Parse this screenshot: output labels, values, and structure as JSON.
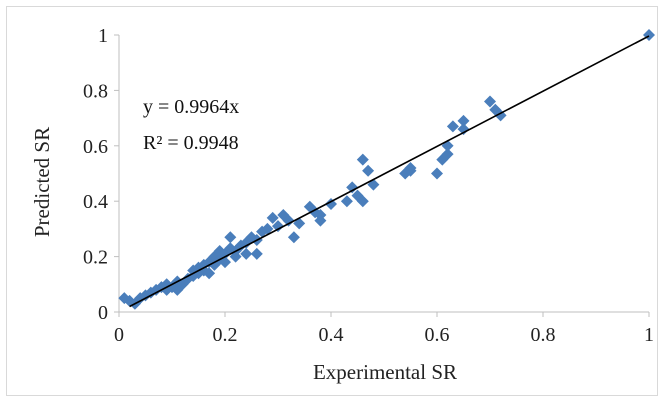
{
  "chart_data": {
    "type": "scatter",
    "title": "",
    "xlabel": "Experimental SR",
    "ylabel": "Predicted SR",
    "xlim": [
      0,
      1
    ],
    "ylim": [
      0,
      1
    ],
    "xticks": [
      "0",
      "0.2",
      "0.4",
      "0.6",
      "0.8",
      "1"
    ],
    "yticks": [
      "0",
      "0.2",
      "0.4",
      "0.6",
      "0.8",
      "1"
    ],
    "grid": false,
    "legend": "none",
    "marker_color": "#4a7ebb",
    "trendline_color": "#000000",
    "annotations": [
      "y = 0.9964x",
      "R² = 0.9948"
    ],
    "trendline": {
      "slope": 0.9964,
      "intercept": 0
    },
    "series": [
      {
        "points": [
          [
            0.01,
            0.05
          ],
          [
            0.02,
            0.04
          ],
          [
            0.03,
            0.03
          ],
          [
            0.04,
            0.05
          ],
          [
            0.05,
            0.06
          ],
          [
            0.06,
            0.07
          ],
          [
            0.07,
            0.08
          ],
          [
            0.08,
            0.09
          ],
          [
            0.09,
            0.08
          ],
          [
            0.09,
            0.1
          ],
          [
            0.1,
            0.09
          ],
          [
            0.11,
            0.11
          ],
          [
            0.11,
            0.08
          ],
          [
            0.12,
            0.1
          ],
          [
            0.13,
            0.12
          ],
          [
            0.14,
            0.13
          ],
          [
            0.14,
            0.15
          ],
          [
            0.15,
            0.14
          ],
          [
            0.15,
            0.16
          ],
          [
            0.16,
            0.15
          ],
          [
            0.16,
            0.17
          ],
          [
            0.17,
            0.18
          ],
          [
            0.17,
            0.14
          ],
          [
            0.18,
            0.17
          ],
          [
            0.18,
            0.2
          ],
          [
            0.19,
            0.19
          ],
          [
            0.19,
            0.22
          ],
          [
            0.2,
            0.18
          ],
          [
            0.2,
            0.21
          ],
          [
            0.21,
            0.23
          ],
          [
            0.21,
            0.27
          ],
          [
            0.22,
            0.2
          ],
          [
            0.22,
            0.22
          ],
          [
            0.23,
            0.24
          ],
          [
            0.24,
            0.25
          ],
          [
            0.24,
            0.21
          ],
          [
            0.25,
            0.27
          ],
          [
            0.26,
            0.26
          ],
          [
            0.26,
            0.21
          ],
          [
            0.27,
            0.29
          ],
          [
            0.28,
            0.3
          ],
          [
            0.29,
            0.34
          ],
          [
            0.3,
            0.31
          ],
          [
            0.31,
            0.35
          ],
          [
            0.32,
            0.33
          ],
          [
            0.33,
            0.27
          ],
          [
            0.34,
            0.32
          ],
          [
            0.36,
            0.38
          ],
          [
            0.37,
            0.36
          ],
          [
            0.38,
            0.35
          ],
          [
            0.38,
            0.33
          ],
          [
            0.4,
            0.39
          ],
          [
            0.43,
            0.4
          ],
          [
            0.44,
            0.45
          ],
          [
            0.45,
            0.42
          ],
          [
            0.46,
            0.4
          ],
          [
            0.46,
            0.55
          ],
          [
            0.47,
            0.51
          ],
          [
            0.48,
            0.46
          ],
          [
            0.54,
            0.5
          ],
          [
            0.55,
            0.51
          ],
          [
            0.55,
            0.52
          ],
          [
            0.6,
            0.5
          ],
          [
            0.61,
            0.55
          ],
          [
            0.62,
            0.57
          ],
          [
            0.62,
            0.6
          ],
          [
            0.63,
            0.67
          ],
          [
            0.65,
            0.66
          ],
          [
            0.65,
            0.69
          ],
          [
            0.7,
            0.76
          ],
          [
            0.71,
            0.73
          ],
          [
            0.72,
            0.71
          ],
          [
            1.0,
            1.0
          ]
        ]
      }
    ]
  }
}
